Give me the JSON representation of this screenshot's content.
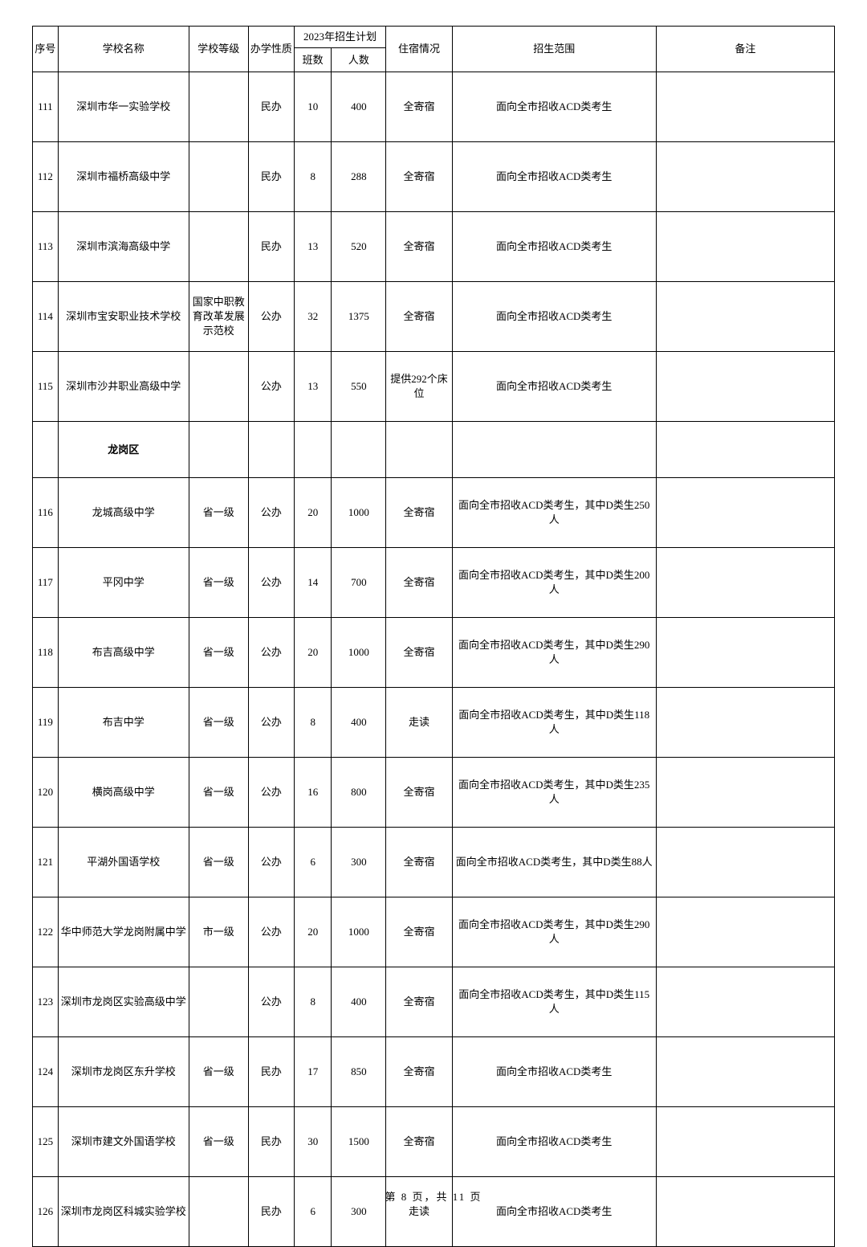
{
  "header": {
    "seq": "序号",
    "name": "学校名称",
    "level": "学校等级",
    "type": "办学性质",
    "plan": "2023年招生计划",
    "classes": "班数",
    "count": "人数",
    "board": "住宿情况",
    "scope": "招生范围",
    "note": "备注"
  },
  "rows": [
    {
      "seq": "111",
      "name": "深圳市华一实验学校",
      "level": "",
      "type": "民办",
      "classes": "10",
      "count": "400",
      "board": "全寄宿",
      "scope": "面向全市招收ACD类考生",
      "note": ""
    },
    {
      "seq": "112",
      "name": "深圳市福桥高级中学",
      "level": "",
      "type": "民办",
      "classes": "8",
      "count": "288",
      "board": "全寄宿",
      "scope": "面向全市招收ACD类考生",
      "note": ""
    },
    {
      "seq": "113",
      "name": "深圳市滨海高级中学",
      "level": "",
      "type": "民办",
      "classes": "13",
      "count": "520",
      "board": "全寄宿",
      "scope": "面向全市招收ACD类考生",
      "note": ""
    },
    {
      "seq": "114",
      "name": "深圳市宝安职业技术学校",
      "level": "国家中职教育改革发展示范校",
      "type": "公办",
      "classes": "32",
      "count": "1375",
      "board": "全寄宿",
      "scope": "面向全市招收ACD类考生",
      "note": ""
    },
    {
      "seq": "115",
      "name": "深圳市沙井职业高级中学",
      "level": "",
      "type": "公办",
      "classes": "13",
      "count": "550",
      "board": "提供292个床位",
      "scope": "面向全市招收ACD类考生",
      "note": ""
    },
    {
      "district": true,
      "name": "龙岗区"
    },
    {
      "seq": "116",
      "name": "龙城高级中学",
      "level": "省一级",
      "type": "公办",
      "classes": "20",
      "count": "1000",
      "board": "全寄宿",
      "scope": "面向全市招收ACD类考生，其中D类生250人",
      "note": ""
    },
    {
      "seq": "117",
      "name": "平冈中学",
      "level": "省一级",
      "type": "公办",
      "classes": "14",
      "count": "700",
      "board": "全寄宿",
      "scope": "面向全市招收ACD类考生，其中D类生200人",
      "note": ""
    },
    {
      "seq": "118",
      "name": "布吉高级中学",
      "level": "省一级",
      "type": "公办",
      "classes": "20",
      "count": "1000",
      "board": "全寄宿",
      "scope": "面向全市招收ACD类考生，其中D类生290人",
      "note": ""
    },
    {
      "seq": "119",
      "name": "布吉中学",
      "level": "省一级",
      "type": "公办",
      "classes": "8",
      "count": "400",
      "board": "走读",
      "scope": "面向全市招收ACD类考生，其中D类生118人",
      "note": ""
    },
    {
      "seq": "120",
      "name": "横岗高级中学",
      "level": "省一级",
      "type": "公办",
      "classes": "16",
      "count": "800",
      "board": "全寄宿",
      "scope": "面向全市招收ACD类考生，其中D类生235人",
      "note": ""
    },
    {
      "seq": "121",
      "name": "平湖外国语学校",
      "level": "省一级",
      "type": "公办",
      "classes": "6",
      "count": "300",
      "board": "全寄宿",
      "scope": "面向全市招收ACD类考生，其中D类生88人",
      "note": ""
    },
    {
      "seq": "122",
      "name": "华中师范大学龙岗附属中学",
      "level": "市一级",
      "type": "公办",
      "classes": "20",
      "count": "1000",
      "board": "全寄宿",
      "scope": "面向全市招收ACD类考生，其中D类生290人",
      "note": ""
    },
    {
      "seq": "123",
      "name": "深圳市龙岗区实验高级中学",
      "level": "",
      "type": "公办",
      "classes": "8",
      "count": "400",
      "board": "全寄宿",
      "scope": "面向全市招收ACD类考生，其中D类生115人",
      "note": ""
    },
    {
      "seq": "124",
      "name": "深圳市龙岗区东升学校",
      "level": "省一级",
      "type": "民办",
      "classes": "17",
      "count": "850",
      "board": "全寄宿",
      "scope": "面向全市招收ACD类考生",
      "note": ""
    },
    {
      "seq": "125",
      "name": "深圳市建文外国语学校",
      "level": "省一级",
      "type": "民办",
      "classes": "30",
      "count": "1500",
      "board": "全寄宿",
      "scope": "面向全市招收ACD类考生",
      "note": ""
    },
    {
      "seq": "126",
      "name": "深圳市龙岗区科城实验学校",
      "level": "",
      "type": "民办",
      "classes": "6",
      "count": "300",
      "board": "走读",
      "scope": "面向全市招收ACD类考生",
      "note": ""
    }
  ],
  "footer": "第 8 页，共 11 页"
}
